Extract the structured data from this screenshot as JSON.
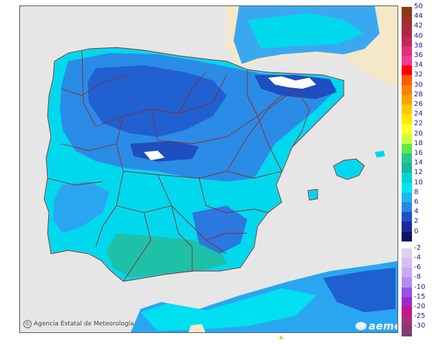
{
  "credit": {
    "copyright_symbol": "©",
    "text": "Agencia Estatal de Meteorología"
  },
  "logo": {
    "text": "aemet"
  },
  "legend": {
    "items": [
      {
        "label": "50",
        "color": "#8a3a10"
      },
      {
        "label": "44",
        "color": "#a0302a"
      },
      {
        "label": "42",
        "color": "#b02840"
      },
      {
        "label": "40",
        "color": "#c42858"
      },
      {
        "label": "38",
        "color": "#dc3078"
      },
      {
        "label": "36",
        "color": "#f03c9c"
      },
      {
        "label": "34",
        "color": "#ff0000"
      },
      {
        "label": "32",
        "color": "#ff5a00"
      },
      {
        "label": "30",
        "color": "#ff8200"
      },
      {
        "label": "28",
        "color": "#ffa000"
      },
      {
        "label": "26",
        "color": "#ffc800"
      },
      {
        "label": "24",
        "color": "#ffe600"
      },
      {
        "label": "22",
        "color": "#ffff28"
      },
      {
        "label": "20",
        "color": "#c8ff3c"
      },
      {
        "label": "18",
        "color": "#64e646"
      },
      {
        "label": "16",
        "color": "#28c88c"
      },
      {
        "label": "14",
        "color": "#1eb4a0"
      },
      {
        "label": "12",
        "color": "#00d2d2"
      },
      {
        "label": "10",
        "color": "#00e6f0"
      },
      {
        "label": "8",
        "color": "#1eb4f0"
      },
      {
        "label": "6",
        "color": "#2888e6"
      },
      {
        "label": "4",
        "color": "#2050c8"
      },
      {
        "label": "2",
        "color": "#182c96"
      },
      {
        "label": "0",
        "color": "#0c1464"
      },
      {
        "label": "-2",
        "color": "#dcd2f0"
      },
      {
        "label": "-4",
        "color": "#d2bef0"
      },
      {
        "label": "-6",
        "color": "#c8aaf0"
      },
      {
        "label": "-8",
        "color": "#b48cf0"
      },
      {
        "label": "-10",
        "color": "#9650e6"
      },
      {
        "label": "-15",
        "color": "#a028c8"
      },
      {
        "label": "-20",
        "color": "#c8148c"
      },
      {
        "label": "-25",
        "color": "#a0327a"
      },
      {
        "label": "-30",
        "color": "#823c6e"
      }
    ]
  },
  "colors": {
    "sea": "#e6e6e6",
    "land_outside": "#f5e8c8",
    "cyan": "#00e0f0",
    "light_blue": "#2aa6f0",
    "mid_blue": "#2a78e0",
    "dark_blue": "#1e4ec0",
    "teal": "#1ec0a8",
    "borders": "#a02020"
  }
}
